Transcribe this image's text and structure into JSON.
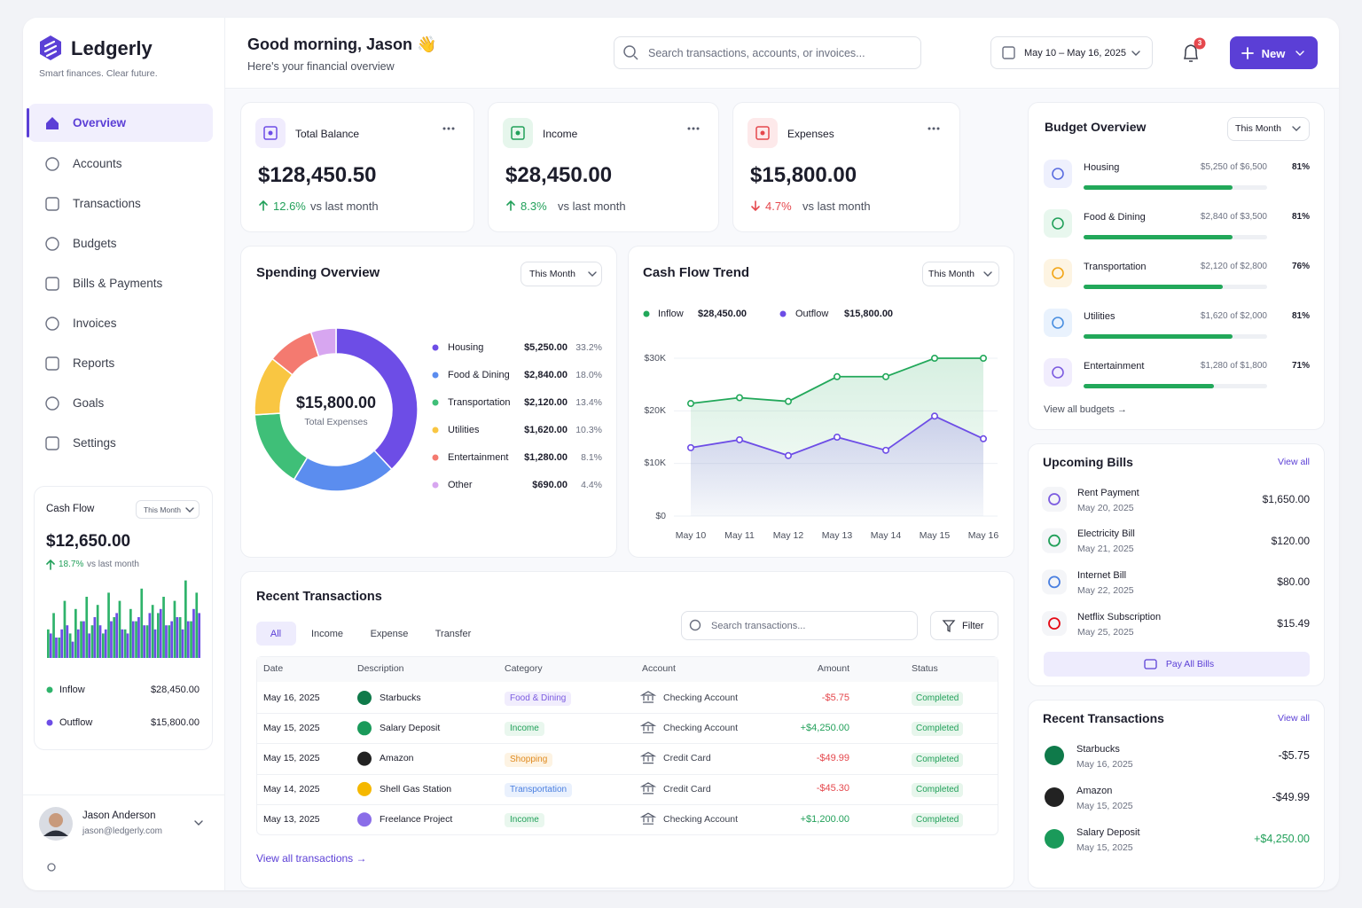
{
  "sidebar": {
    "brand": "Ledgerly",
    "tagline": "Smart finances. Clear future.",
    "nav": [
      "Overview",
      "Accounts",
      "Transactions",
      "Budgets",
      "Bills & Payments",
      "Invoices",
      "Reports",
      "Goals",
      "Settings"
    ],
    "cash_flow": {
      "title": "Cash Flow",
      "period": "This Month",
      "amount": "$12,650.00",
      "change": "18.7%",
      "direction": "up",
      "note": "vs last month",
      "legend": [
        {
          "name": "Inflow",
          "amount": "$28,450.00",
          "color": "#2fb36b"
        },
        {
          "name": "Outflow",
          "amount": "$15,800.00",
          "color": "#6d4de6"
        }
      ],
      "bars": {
        "inflow": [
          35,
          55,
          25,
          70,
          30,
          60,
          45,
          75,
          40,
          65,
          30,
          80,
          50,
          70,
          35,
          60,
          45,
          85,
          40,
          65,
          55,
          75,
          40,
          70,
          50,
          95,
          45,
          80
        ],
        "outflow": [
          30,
          25,
          35,
          40,
          20,
          35,
          45,
          30,
          50,
          40,
          35,
          45,
          55,
          35,
          30,
          45,
          50,
          40,
          55,
          35,
          60,
          40,
          45,
          50,
          35,
          45,
          60,
          55
        ]
      }
    },
    "user": {
      "name": "Jason Anderson",
      "email": "jason@ledgerly.com"
    }
  },
  "header": {
    "greeting": "Good morning, Jason 👋",
    "subtitle": "Here's your financial overview",
    "search_placeholder": "Search transactions, accounts, or invoices...",
    "date_range": "May 10 – May 16, 2025",
    "notifications": "3",
    "new_button": "New"
  },
  "stats": [
    {
      "label": "Total Balance",
      "amount": "$128,450.50",
      "change": "12.6%",
      "direction": "up",
      "note": "vs last month",
      "icon_color": "#6d4de6",
      "icon_bg": "#f0ecfd"
    },
    {
      "label": "Income",
      "amount": "$28,450.00",
      "change": "8.3%",
      "direction": "up",
      "note": "vs last month",
      "icon_color": "#22a05a",
      "icon_bg": "#e6f6ec"
    },
    {
      "label": "Expenses",
      "amount": "$15,800.00",
      "change": "4.7%",
      "direction": "down",
      "note": "vs last month",
      "icon_color": "#e5484d",
      "icon_bg": "#fde9ea"
    }
  ],
  "spending": {
    "title": "Spending Overview",
    "period": "This Month",
    "total": "$15,800.00",
    "total_label": "Total Expenses",
    "segments": [
      {
        "name": "Housing",
        "value": 5250,
        "value_label": "$5,250.00",
        "share": "33.2%",
        "color": "#6d4de6"
      },
      {
        "name": "Food & Dining",
        "value": 2840,
        "value_label": "$2,840.00",
        "share": "18.0%",
        "color": "#5b8def"
      },
      {
        "name": "Transportation",
        "value": 2120,
        "value_label": "$2,120.00",
        "share": "13.4%",
        "color": "#3fbf78"
      },
      {
        "name": "Utilities",
        "value": 1620,
        "value_label": "$1,620.00",
        "share": "10.3%",
        "color": "#f9c642"
      },
      {
        "name": "Entertainment",
        "value": 1280,
        "value_label": "$1,280.00",
        "share": "8.1%",
        "color": "#f47a70"
      },
      {
        "name": "Other",
        "value": 690,
        "value_label": "$690.00",
        "share": "4.4%",
        "color": "#d7a6f0"
      }
    ]
  },
  "cash_flow_trend": {
    "type": "line",
    "title": "Cash Flow Trend",
    "period": "This Month",
    "x": [
      "May 10",
      "May 11",
      "May 12",
      "May 13",
      "May 14",
      "May 15",
      "May 16"
    ],
    "ylim": [
      0,
      30000
    ],
    "yticks": [
      {
        "value": 0,
        "label": "$0"
      },
      {
        "value": 10000,
        "label": "$10K"
      },
      {
        "value": 20000,
        "label": "$20K"
      },
      {
        "value": 30000,
        "label": "$30K"
      }
    ],
    "grid": true,
    "series": [
      {
        "name": "Inflow",
        "total": "$28,450.00",
        "color": "#22a85a",
        "values": [
          21400,
          22500,
          21800,
          26500,
          26500,
          30000,
          30000
        ]
      },
      {
        "name": "Outflow",
        "total": "$15,800.00",
        "color": "#6d4de6",
        "values": [
          13000,
          14500,
          11500,
          15000,
          12500,
          19000,
          14700
        ]
      }
    ]
  },
  "transactions": {
    "title": "Recent Transactions",
    "tabs": [
      "All",
      "Income",
      "Expense",
      "Transfer"
    ],
    "search_placeholder": "Search transactions...",
    "filter": "Filter",
    "columns": [
      "Date",
      "Description",
      "Category",
      "Account",
      "Amount",
      "Status"
    ],
    "rows": [
      {
        "date": "May 16, 2025",
        "description": "Starbucks",
        "category": "Food & Dining",
        "category_color": "#7c5ce0",
        "category_bg": "#f1edfd",
        "account": "Checking Account",
        "amount": "-$5.75",
        "amount_color": "#e5484d",
        "status": "Completed",
        "icon_color": "#0f7a4a"
      },
      {
        "date": "May 15, 2025",
        "description": "Salary Deposit",
        "category": "Income",
        "category_color": "#22a05a",
        "category_bg": "#e9f7ee",
        "account": "Checking Account",
        "amount": "+$4,250.00",
        "amount_color": "#22a05a",
        "status": "Completed",
        "icon_color": "#1a9a5a"
      },
      {
        "date": "May 15, 2025",
        "description": "Amazon",
        "category": "Shopping",
        "category_color": "#e08a1e",
        "category_bg": "#fdf3e3",
        "account": "Credit Card",
        "amount": "-$49.99",
        "amount_color": "#e5484d",
        "status": "Completed",
        "icon_color": "#222222"
      },
      {
        "date": "May 14, 2025",
        "description": "Shell Gas Station",
        "category": "Transportation",
        "category_color": "#4a7fe0",
        "category_bg": "#eaf1fd",
        "account": "Credit Card",
        "amount": "-$45.30",
        "amount_color": "#e5484d",
        "status": "Completed",
        "icon_color": "#f5b800"
      },
      {
        "date": "May 13, 2025",
        "description": "Freelance Project",
        "category": "Income",
        "category_color": "#22a05a",
        "category_bg": "#e9f7ee",
        "account": "Checking Account",
        "amount": "+$1,200.00",
        "amount_color": "#22a05a",
        "status": "Completed",
        "icon_color": "#8a6de8"
      }
    ],
    "footer": "View all transactions →"
  },
  "budget": {
    "title": "Budget Overview",
    "period": "This Month",
    "items": [
      {
        "name": "Housing",
        "spent": "$5,250 of $6,500",
        "percent": 81,
        "percent_label": "81%",
        "icon_color": "#5b6ee0",
        "icon_bg": "#eef0fd"
      },
      {
        "name": "Food & Dining",
        "spent": "$2,840 of $3,500",
        "percent": 81,
        "percent_label": "81%",
        "icon_color": "#22a05a",
        "icon_bg": "#e8f7ee"
      },
      {
        "name": "Transportation",
        "spent": "$2,120 of $2,800",
        "percent": 76,
        "percent_label": "76%",
        "icon_color": "#f2a516",
        "icon_bg": "#fdf4e2"
      },
      {
        "name": "Utilities",
        "spent": "$1,620 of $2,000",
        "percent": 81,
        "percent_label": "81%",
        "icon_color": "#4a8fe0",
        "icon_bg": "#e9f2fd"
      },
      {
        "name": "Entertainment",
        "spent": "$1,280 of $1,800",
        "percent": 71,
        "percent_label": "71%",
        "icon_color": "#7c5ce0",
        "icon_bg": "#f1edfd"
      }
    ],
    "bar_color": "#22a85a",
    "footer": "View all budgets →"
  },
  "bills": {
    "title": "Upcoming Bills",
    "view_all": "View all",
    "items": [
      {
        "name": "Rent Payment",
        "date": "May 20, 2025",
        "amount": "$1,650.00",
        "icon_color": "#7c5ce0"
      },
      {
        "name": "Electricity Bill",
        "date": "May 21, 2025",
        "amount": "$120.00",
        "icon_color": "#22a05a"
      },
      {
        "name": "Internet Bill",
        "date": "May 22, 2025",
        "amount": "$80.00",
        "icon_color": "#4a7fe0"
      },
      {
        "name": "Netflix Subscription",
        "date": "May 25, 2025",
        "amount": "$15.49",
        "icon_color": "#e50914"
      }
    ],
    "button": "Pay All Bills"
  },
  "recent": {
    "title": "Recent Transactions",
    "view_all": "View all",
    "items": [
      {
        "name": "Starbucks",
        "date": "May 16, 2025",
        "amount": "-$5.75",
        "amount_color": "#1c1d2b",
        "icon_color": "#0f7a4a"
      },
      {
        "name": "Amazon",
        "date": "May 15, 2025",
        "amount": "-$49.99",
        "amount_color": "#1c1d2b",
        "icon_color": "#222222"
      },
      {
        "name": "Salary Deposit",
        "date": "May 15, 2025",
        "amount": "+$4,250.00",
        "amount_color": "#22a05a",
        "icon_color": "#1a9a5a"
      }
    ]
  }
}
